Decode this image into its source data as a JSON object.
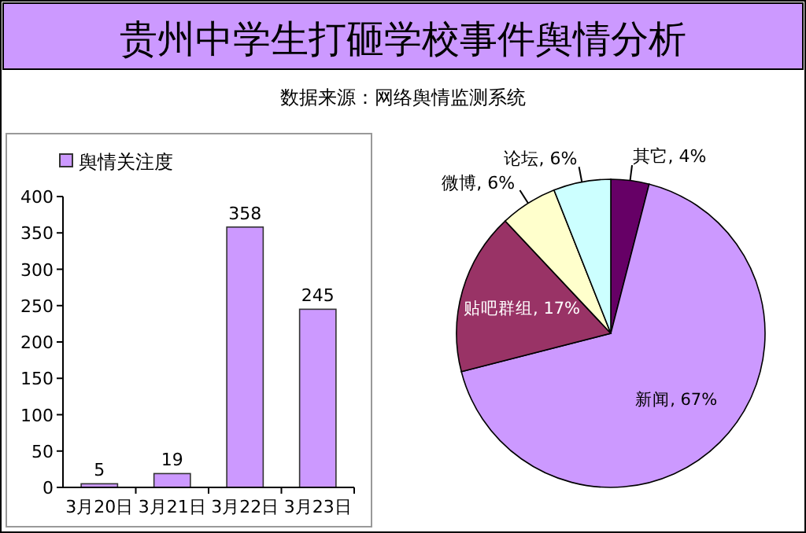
{
  "chart_data": [
    {
      "type": "bar",
      "title": "贵州中学生打砸学校事件舆情分析",
      "subtitle": "数据来源：网络舆情监测系统",
      "categories": [
        "3月20日",
        "3月21日",
        "3月22日",
        "3月23日"
      ],
      "series": [
        {
          "name": "舆情关注度",
          "color": "#cc99ff",
          "values": [
            5,
            19,
            358,
            245
          ]
        }
      ],
      "ylim": [
        0,
        400
      ],
      "yticks": [
        0,
        50,
        100,
        150,
        200,
        250,
        300,
        350,
        400
      ],
      "data_labels": true,
      "legend": "top left"
    },
    {
      "type": "pie",
      "categories": [
        "其它",
        "新闻",
        "贴吧群组",
        "微博",
        "论坛"
      ],
      "values": [
        4,
        67,
        17,
        6,
        6
      ],
      "value_labels": [
        "4%",
        "67%",
        "17%",
        "6%",
        "6%"
      ],
      "colors": [
        "#660066",
        "#cc99ff",
        "#993366",
        "#ffffcc",
        "#ccffff"
      ]
    }
  ]
}
